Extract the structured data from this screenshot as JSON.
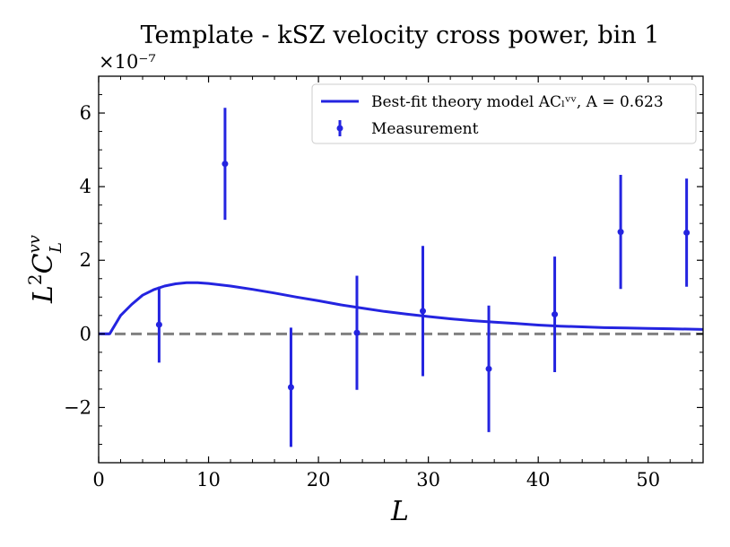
{
  "chart_data": {
    "type": "scatter",
    "title": "Template - kSZ velocity cross power, bin 1",
    "xlabel": "L",
    "ylabel": "L²Cₗᵛᵛ",
    "ylabel_parts": {
      "base": "L",
      "sup1": "2",
      "mid": "C",
      "sub": "L",
      "sup2": "vv"
    },
    "scale_label": "×10⁻⁷",
    "xlim": [
      0,
      55
    ],
    "ylim": [
      -3.5,
      7.0
    ],
    "xticks": [
      0,
      10,
      20,
      30,
      40,
      50
    ],
    "xtick_labels": [
      "0",
      "10",
      "20",
      "30",
      "40",
      "50"
    ],
    "yticks": [
      -2,
      0,
      2,
      4,
      6
    ],
    "ytick_labels": [
      "−2",
      "0",
      "2",
      "4",
      "6"
    ],
    "grid": false,
    "legend_position": "top-right",
    "zero_line": {
      "y": 0,
      "style": "dashed",
      "color": "#808080"
    },
    "series": [
      {
        "name": "Best-fit theory model AC_L^vv, A = 0.623",
        "legend_label": "Best-fit theory model ACₗᵛᵛ, A = 0.623",
        "kind": "line",
        "color": "#2424e0",
        "x": [
          0,
          1,
          2,
          3,
          4,
          5,
          6,
          7,
          8,
          9,
          10,
          12,
          14,
          16,
          18,
          20,
          22,
          24,
          26,
          28,
          30,
          32,
          34,
          36,
          38,
          40,
          42,
          44,
          46,
          48,
          50,
          52,
          55
        ],
        "y": [
          0,
          0,
          0.5,
          0.8,
          1.05,
          1.2,
          1.3,
          1.36,
          1.39,
          1.39,
          1.37,
          1.3,
          1.21,
          1.11,
          1.0,
          0.9,
          0.79,
          0.7,
          0.61,
          0.54,
          0.47,
          0.41,
          0.36,
          0.32,
          0.28,
          0.24,
          0.21,
          0.19,
          0.17,
          0.16,
          0.15,
          0.14,
          0.12
        ]
      },
      {
        "name": "Measurement",
        "legend_label": "Measurement",
        "kind": "errorbar",
        "color": "#2424e0",
        "x": [
          5.5,
          11.5,
          17.5,
          23.5,
          29.5,
          35.5,
          41.5,
          47.5,
          53.5
        ],
        "y": [
          0.25,
          4.62,
          -1.45,
          0.03,
          0.62,
          -0.95,
          0.53,
          2.77,
          2.75
        ],
        "yerr": [
          1.03,
          1.52,
          1.62,
          1.55,
          1.77,
          1.72,
          1.57,
          1.55,
          1.47
        ]
      }
    ]
  }
}
